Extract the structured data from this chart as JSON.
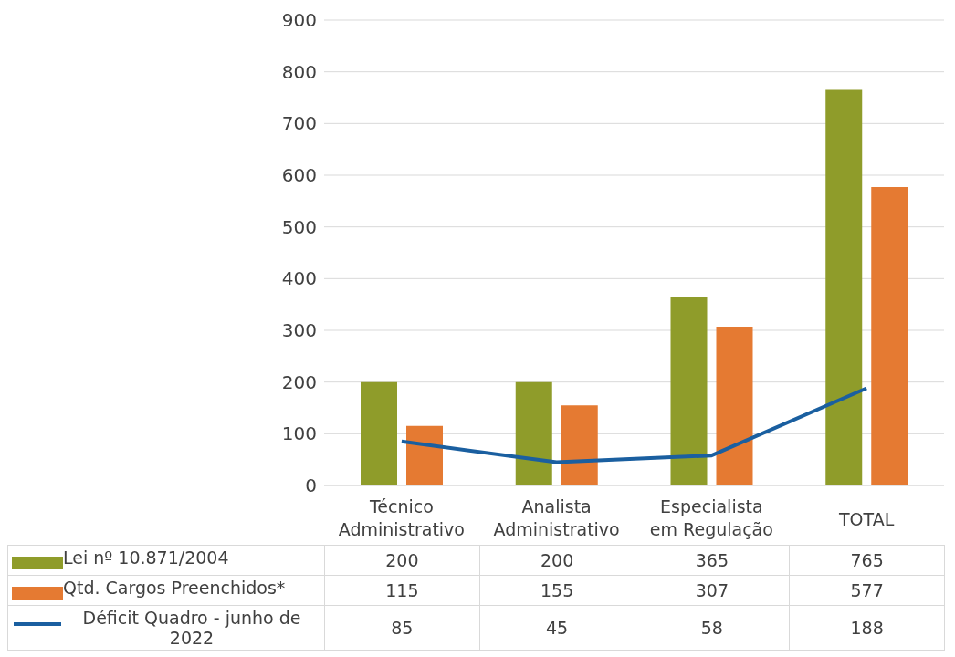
{
  "chart_data": {
    "type": "bar",
    "categories": [
      "Técnico Administrativo",
      "Analista Administrativo",
      "Especialista em Regulação",
      "TOTAL"
    ],
    "series": [
      {
        "name": "Lei nº 10.871/2004",
        "color": "#8f9c2a",
        "values": [
          200,
          200,
          365,
          765
        ]
      },
      {
        "name": "Qtd. Cargos Preenchidos*",
        "color": "#e57a32",
        "values": [
          115,
          155,
          307,
          577
        ]
      },
      {
        "name": "Déficit Quadro - junho de 2022",
        "type": "line",
        "color": "#1a5fa0",
        "values": [
          85,
          45,
          58,
          188
        ]
      }
    ],
    "ylim": [
      0,
      900
    ],
    "yticks": [
      0,
      100,
      200,
      300,
      400,
      500,
      600,
      700,
      800,
      900
    ],
    "grid": "y",
    "legend": "bottom",
    "data_labels": true,
    "marker": "none"
  }
}
